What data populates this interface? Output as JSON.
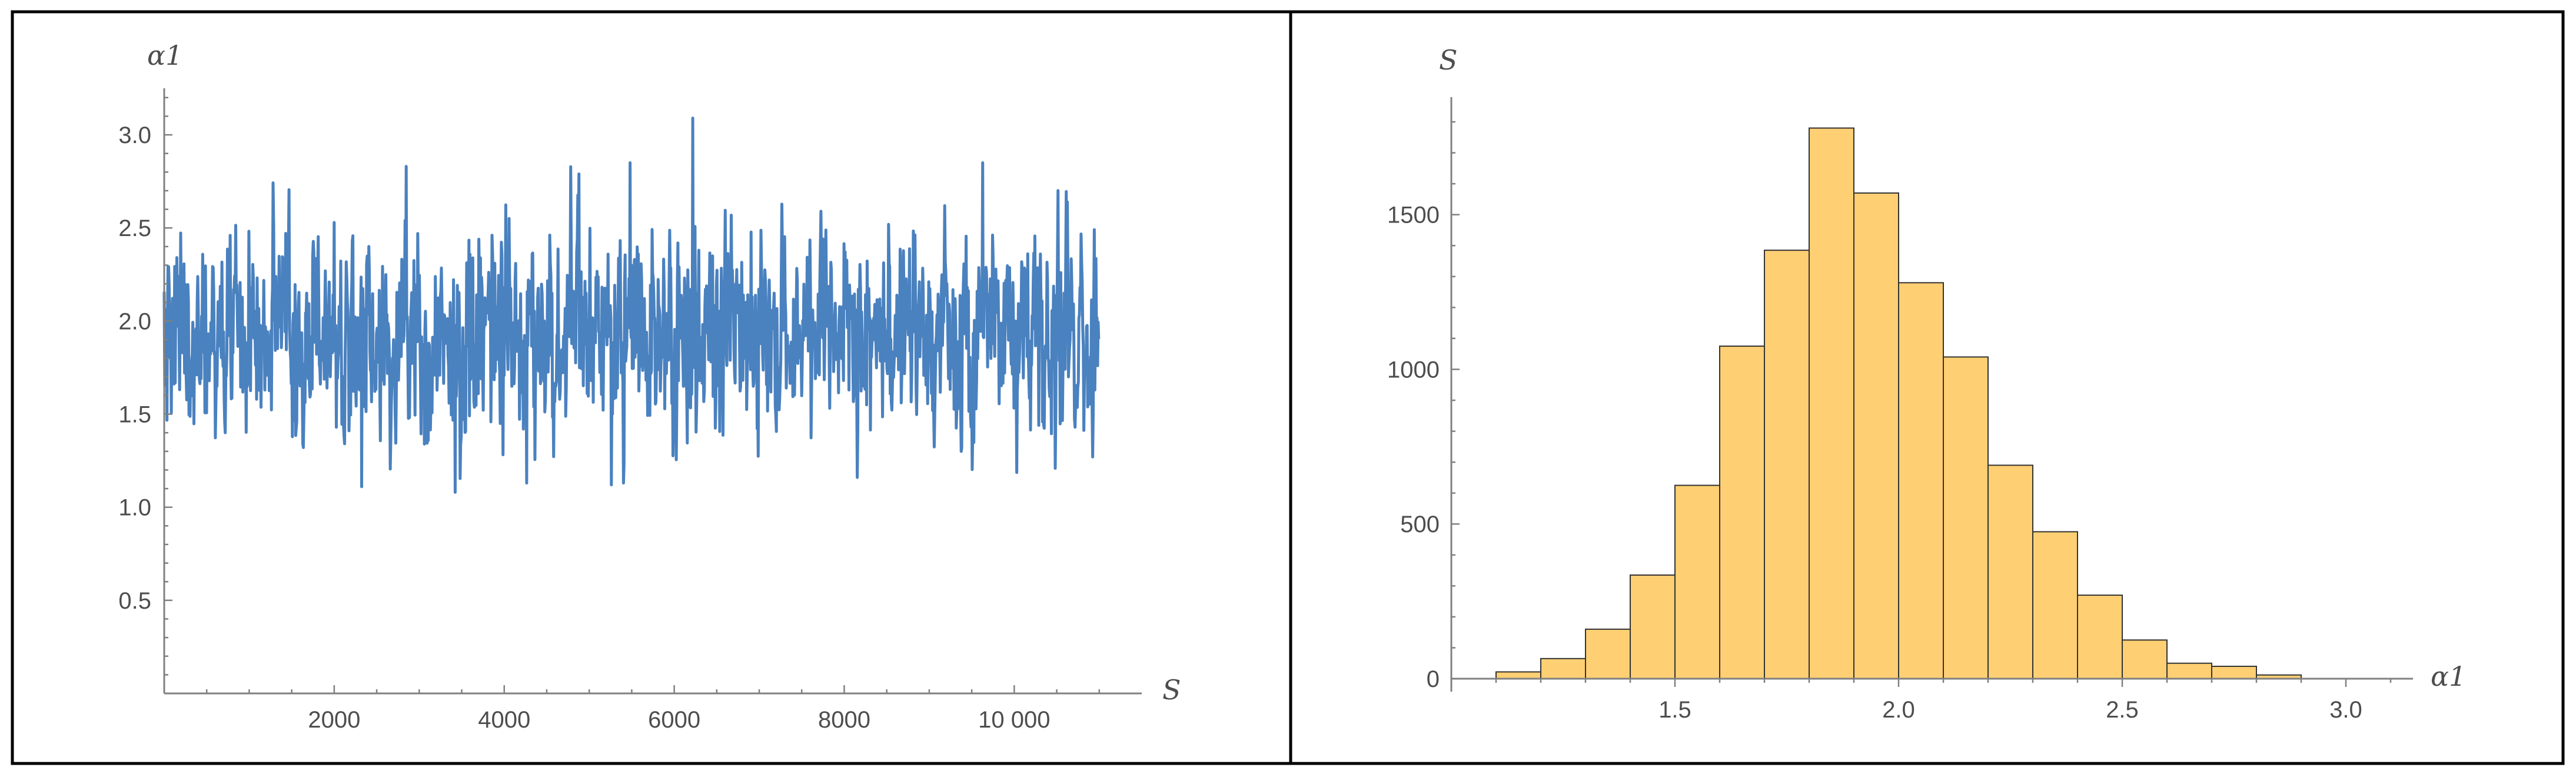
{
  "chart_data": [
    {
      "type": "line",
      "title": "",
      "xlabel": "S",
      "ylabel": "α1",
      "xlim": [
        0,
        11500
      ],
      "ylim": [
        0,
        3.25
      ],
      "x_ticks": [
        2000,
        4000,
        6000,
        8000,
        10000
      ],
      "x_tick_labels": [
        "2000",
        "4000",
        "6000",
        "8000",
        "10 000"
      ],
      "y_ticks": [
        0.5,
        1.0,
        1.5,
        2.0,
        2.5,
        3.0
      ],
      "y_tick_labels": [
        "0.5",
        "1.0",
        "1.5",
        "2.0",
        "2.5",
        "3.0"
      ],
      "series": [
        {
          "color": "#4a81bf",
          "n_samples": 11000,
          "mean": 1.92,
          "sd": 0.27,
          "min": 1.08,
          "max": 3.09
        }
      ],
      "grid": false
    },
    {
      "type": "bar",
      "title": "",
      "xlabel": "α1",
      "ylabel": "S",
      "xlim": [
        1.0,
        3.15
      ],
      "ylim": [
        0,
        1880
      ],
      "x_ticks": [
        1.5,
        2.0,
        2.5,
        3.0
      ],
      "x_tick_labels": [
        "1.5",
        "2.0",
        "2.5",
        "3.0"
      ],
      "y_ticks": [
        0,
        500,
        1000,
        1500
      ],
      "y_tick_labels": [
        "0",
        "500",
        "1000",
        "1500"
      ],
      "bin_width": 0.1,
      "bins": [
        {
          "x0": 1.1,
          "x1": 1.2,
          "count": 22
        },
        {
          "x0": 1.2,
          "x1": 1.3,
          "count": 65
        },
        {
          "x0": 1.3,
          "x1": 1.4,
          "count": 160
        },
        {
          "x0": 1.4,
          "x1": 1.5,
          "count": 335
        },
        {
          "x0": 1.5,
          "x1": 1.6,
          "count": 625
        },
        {
          "x0": 1.6,
          "x1": 1.7,
          "count": 1075
        },
        {
          "x0": 1.7,
          "x1": 1.8,
          "count": 1385
        },
        {
          "x0": 1.8,
          "x1": 1.9,
          "count": 1780
        },
        {
          "x0": 1.9,
          "x1": 2.0,
          "count": 1570
        },
        {
          "x0": 2.0,
          "x1": 2.1,
          "count": 1280
        },
        {
          "x0": 2.1,
          "x1": 2.2,
          "count": 1040
        },
        {
          "x0": 2.2,
          "x1": 2.3,
          "count": 690
        },
        {
          "x0": 2.3,
          "x1": 2.4,
          "count": 475
        },
        {
          "x0": 2.4,
          "x1": 2.5,
          "count": 270
        },
        {
          "x0": 2.5,
          "x1": 2.6,
          "count": 125
        },
        {
          "x0": 2.6,
          "x1": 2.7,
          "count": 50
        },
        {
          "x0": 2.7,
          "x1": 2.8,
          "count": 40
        },
        {
          "x0": 2.8,
          "x1": 2.9,
          "count": 12
        }
      ],
      "bar_color": "#fecf73",
      "edge_color": "#333333",
      "grid": false
    }
  ]
}
